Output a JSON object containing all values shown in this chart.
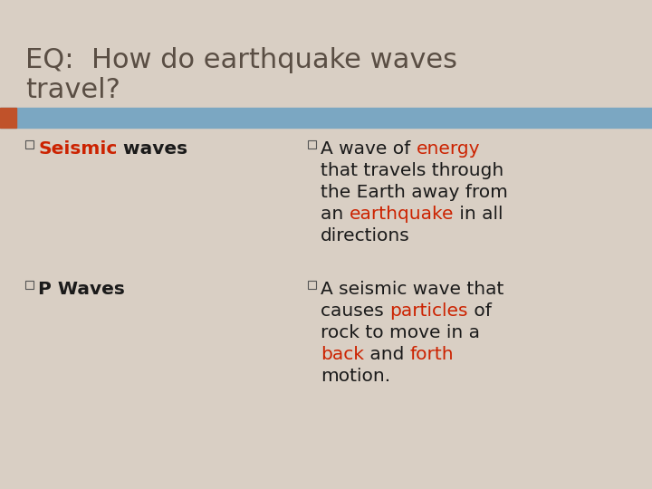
{
  "background_color": "#d9cfc4",
  "title_color": "#5a4e44",
  "title_fontsize": 22,
  "header_bar_color": "#7ba7c2",
  "orange_accent_color": "#c0522a",
  "red_color": "#cc2200",
  "black_color": "#1a1a1a",
  "content_fontsize": 14.5,
  "bullet_color": "#555555",
  "title_line1": "EQ:  How do earthquake waves",
  "title_line2": "travel?",
  "left_bullet1": [
    {
      "text": "Seismic",
      "color": "#cc2200",
      "bold": true
    },
    {
      "text": " waves",
      "color": "#1a1a1a",
      "bold": false
    }
  ],
  "left_bullet2": [
    {
      "text": "P Waves",
      "color": "#1a1a1a",
      "bold": false
    }
  ],
  "right_bullet1": [
    [
      "A wave of ",
      "#1a1a1a",
      "energy",
      "#cc2200",
      ""
    ],
    [
      "that travels through",
      "#1a1a1a",
      "",
      "",
      ""
    ],
    [
      "the Earth away from",
      "#1a1a1a",
      "",
      "",
      ""
    ],
    [
      "an ",
      "#1a1a1a",
      "earthquake",
      "#cc2200",
      " in all"
    ],
    [
      "directions",
      "#1a1a1a",
      "",
      "",
      ""
    ]
  ],
  "right_bullet2": [
    [
      "A seismic wave that",
      "#1a1a1a",
      "",
      "",
      ""
    ],
    [
      "causes ",
      "#1a1a1a",
      "particles",
      "#cc2200",
      " of"
    ],
    [
      "rock to move in a",
      "#1a1a1a",
      "",
      "",
      ""
    ],
    [
      "back",
      "#cc2200",
      " and ",
      "#1a1a1a",
      "forth",
      "#cc2200"
    ],
    [
      "motion.",
      "#1a1a1a",
      "",
      "",
      ""
    ]
  ]
}
